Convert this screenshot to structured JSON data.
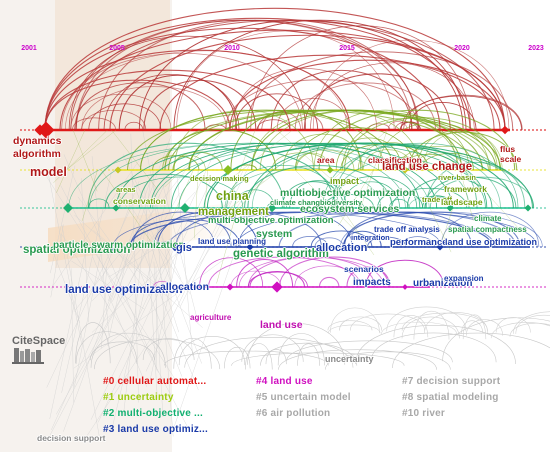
{
  "years": [
    "2001",
    "2005",
    "2010",
    "2015",
    "2020",
    "2023"
  ],
  "logo": "CiteSpace",
  "clusters": [
    {
      "id": "#0",
      "label": "cellular automat...",
      "color": "#e01818"
    },
    {
      "id": "#1",
      "label": "uncertainty",
      "color": "#9ccc10"
    },
    {
      "id": "#2",
      "label": "multi-objective ...",
      "color": "#10b070"
    },
    {
      "id": "#3",
      "label": "land use optimiz...",
      "color": "#1a3aa8"
    },
    {
      "id": "#4",
      "label": "land use",
      "color": "#d010c0"
    },
    {
      "id": "#5",
      "label": "uncertain model",
      "color": "#a8a8a8"
    },
    {
      "id": "#6",
      "label": "air pollution",
      "color": "#a8a8a8"
    },
    {
      "id": "#7",
      "label": "decision support",
      "color": "#a8a8a8"
    },
    {
      "id": "#8",
      "label": "spatial modeling",
      "color": "#a8a8a8"
    },
    {
      "id": "#10",
      "label": "river",
      "color": "#a8a8a8"
    }
  ],
  "keywords": [
    {
      "text": "dynamics",
      "color": "#b01818"
    },
    {
      "text": "algorithm",
      "color": "#b01818"
    },
    {
      "text": "model",
      "color": "#b01818"
    },
    {
      "text": "flus",
      "color": "#b01818"
    },
    {
      "text": "scale",
      "color": "#b01818"
    },
    {
      "text": "area",
      "color": "#b01818"
    },
    {
      "text": "classification",
      "color": "#b01818"
    },
    {
      "text": "land use change",
      "color": "#b01818"
    },
    {
      "text": "decision making",
      "color": "#70a010"
    },
    {
      "text": "areas",
      "color": "#70a010"
    },
    {
      "text": "conservation",
      "color": "#70a010"
    },
    {
      "text": "china",
      "color": "#70a010"
    },
    {
      "text": "management",
      "color": "#70a010"
    },
    {
      "text": "impact",
      "color": "#70a010"
    },
    {
      "text": "river basin",
      "color": "#70a010"
    },
    {
      "text": "framework",
      "color": "#70a010"
    },
    {
      "text": "trade off",
      "color": "#70a010"
    },
    {
      "text": "landscape",
      "color": "#70a010"
    },
    {
      "text": "multiobjective optimization",
      "color": "#2a9a50"
    },
    {
      "text": "climate change",
      "color": "#2a9a50"
    },
    {
      "text": "biodiversity",
      "color": "#2a9a50"
    },
    {
      "text": "ecosystem services",
      "color": "#2a9a50"
    },
    {
      "text": "multi-objective optimization",
      "color": "#2a9a50"
    },
    {
      "text": "system",
      "color": "#2a9a50"
    },
    {
      "text": "genetic algorithm",
      "color": "#2a9a50"
    },
    {
      "text": "climate",
      "color": "#2a9a50"
    },
    {
      "text": "spatial compactness",
      "color": "#2a9a50"
    },
    {
      "text": "spatial optimization",
      "color": "#2a9a50"
    },
    {
      "text": "particle swarm optimization",
      "color": "#2a9a50"
    },
    {
      "text": "land use planning",
      "color": "#1a3aa8"
    },
    {
      "text": "allocation",
      "color": "#1a3aa8"
    },
    {
      "text": "integration",
      "color": "#1a3aa8"
    },
    {
      "text": "trade off analysis",
      "color": "#1a3aa8"
    },
    {
      "text": "performance",
      "color": "#1a3aa8"
    },
    {
      "text": "land use optimization",
      "color": "#1a3aa8"
    },
    {
      "text": "scenarios",
      "color": "#1a3aa8"
    },
    {
      "text": "impacts",
      "color": "#1a3aa8"
    },
    {
      "text": "urbanization",
      "color": "#1a3aa8"
    },
    {
      "text": "expansion",
      "color": "#1a3aa8"
    },
    {
      "text": "gis",
      "color": "#1a3aa8"
    },
    {
      "text": "agriculture",
      "color": "#c010b0"
    },
    {
      "text": "land use",
      "color": "#c010b0"
    },
    {
      "text": "uncertainty",
      "color": "#8a8a8a"
    },
    {
      "text": "decision support",
      "color": "#8a8a8a"
    }
  ]
}
